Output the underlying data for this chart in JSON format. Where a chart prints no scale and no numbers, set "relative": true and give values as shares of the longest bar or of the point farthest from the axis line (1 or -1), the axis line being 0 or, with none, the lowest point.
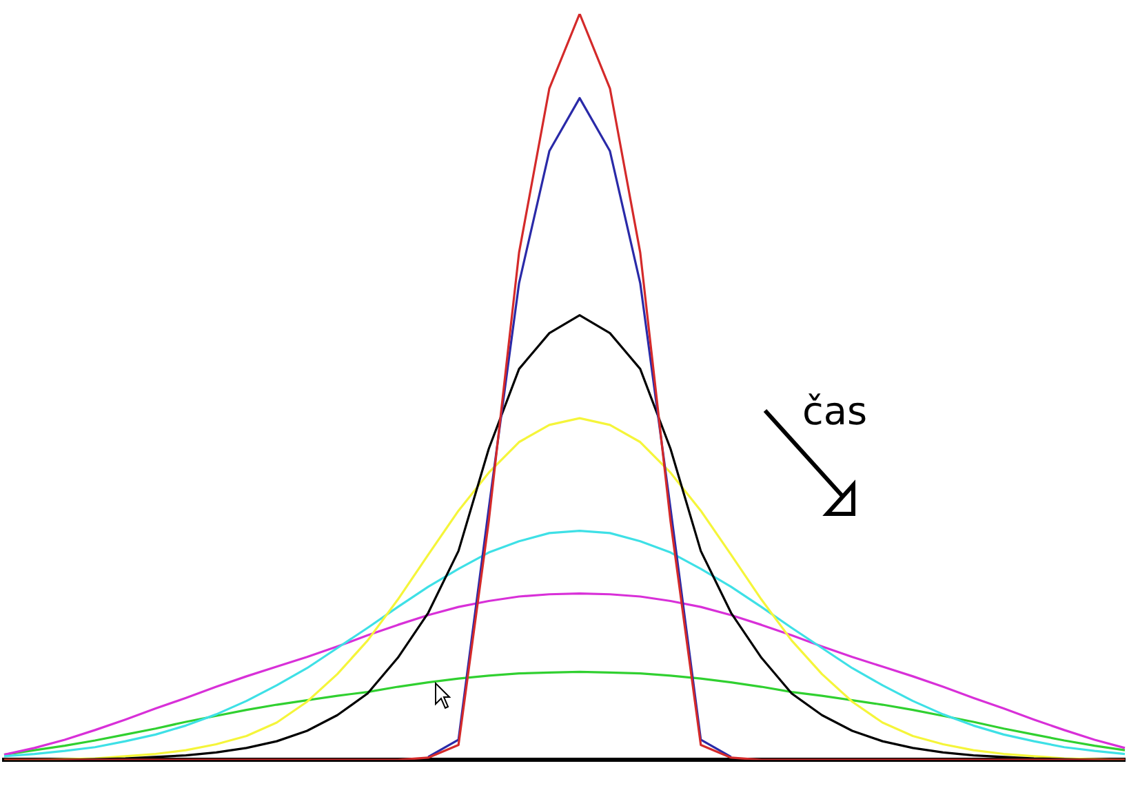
{
  "chart_data": {
    "type": "line",
    "relative": true,
    "marker": "none",
    "categories": [
      null,
      null,
      null,
      null,
      null,
      null,
      null,
      null,
      null,
      null,
      null,
      null,
      null,
      null,
      null,
      null,
      null,
      null,
      null,
      null,
      null,
      null,
      null,
      null,
      null,
      null,
      null,
      null,
      null,
      null,
      null,
      null,
      null,
      null,
      null,
      null,
      null,
      null
    ],
    "annotations": [
      "čas"
    ],
    "series": [
      {
        "color": "#d42a2a",
        "values": [
          0,
          0,
          0,
          0,
          0,
          0,
          0,
          0,
          0,
          0,
          0,
          0,
          0,
          0,
          0.003,
          0.02,
          0.32,
          0.68,
          0.9,
          1,
          0.9,
          0.68,
          0.32,
          0.02,
          0.003,
          0,
          0,
          0,
          0,
          0,
          0,
          0,
          0,
          0,
          0,
          0,
          0,
          0
        ]
      },
      {
        "color": "#2a2aa8",
        "values": [
          null,
          null,
          null,
          null,
          null,
          null,
          null,
          null,
          null,
          null,
          null,
          null,
          null,
          null,
          0.004,
          0.027,
          0.337,
          0.639,
          0.816,
          0.887,
          0.816,
          0.639,
          0.337,
          0.027,
          0.004,
          null,
          null,
          null,
          null,
          null,
          null,
          null,
          null,
          null,
          null,
          null,
          null,
          null
        ]
      },
      {
        "color": "#000000",
        "values": [
          0,
          0,
          0,
          0.001,
          0.002,
          0.004,
          0.006,
          0.01,
          0.016,
          0.025,
          0.039,
          0.06,
          0.089,
          0.137,
          0.197,
          0.28,
          0.417,
          0.524,
          0.572,
          0.596,
          0.572,
          0.524,
          0.417,
          0.28,
          0.197,
          0.137,
          0.089,
          0.06,
          0.039,
          0.025,
          0.016,
          0.01,
          0.006,
          0.004,
          0.002,
          0.001,
          0,
          0
        ]
      },
      {
        "color": "#f5f53a",
        "values": [
          0,
          0,
          0.001,
          0.002,
          0.005,
          0.008,
          0.013,
          0.021,
          0.032,
          0.05,
          0.078,
          0.115,
          0.16,
          0.215,
          0.275,
          0.334,
          0.385,
          0.426,
          0.449,
          0.458,
          0.449,
          0.426,
          0.385,
          0.334,
          0.275,
          0.215,
          0.16,
          0.115,
          0.078,
          0.05,
          0.032,
          0.021,
          0.013,
          0.008,
          0.005,
          0.002,
          0.001,
          0
        ]
      },
      {
        "color": "#3ee0e6",
        "values": [
          0.005,
          0.008,
          0.012,
          0.017,
          0.025,
          0.034,
          0.046,
          0.061,
          0.079,
          0.1,
          0.123,
          0.15,
          0.177,
          0.205,
          0.232,
          0.256,
          0.278,
          0.293,
          0.304,
          0.307,
          0.304,
          0.293,
          0.278,
          0.256,
          0.232,
          0.205,
          0.177,
          0.15,
          0.123,
          0.1,
          0.079,
          0.061,
          0.046,
          0.034,
          0.025,
          0.017,
          0.012,
          0.008
        ]
      },
      {
        "color": "#d830d8",
        "values": [
          0.007,
          0.016,
          0.027,
          0.04,
          0.054,
          0.069,
          0.083,
          0.098,
          0.112,
          0.125,
          0.138,
          0.152,
          0.167,
          0.181,
          0.194,
          0.205,
          0.213,
          0.219,
          0.222,
          0.223,
          0.222,
          0.219,
          0.213,
          0.205,
          0.194,
          0.181,
          0.167,
          0.152,
          0.138,
          0.125,
          0.112,
          0.098,
          0.083,
          0.069,
          0.054,
          0.04,
          0.027,
          0.016
        ]
      },
      {
        "color": "#30d030",
        "values": [
          0.007,
          0.013,
          0.019,
          0.026,
          0.034,
          0.042,
          0.051,
          0.059,
          0.067,
          0.074,
          0.08,
          0.086,
          0.091,
          0.098,
          0.104,
          0.109,
          0.113,
          0.116,
          0.117,
          0.118,
          0.117,
          0.116,
          0.113,
          0.109,
          0.104,
          0.098,
          0.091,
          0.086,
          0.08,
          0.074,
          0.067,
          0.059,
          0.051,
          0.042,
          0.034,
          0.026,
          0.019,
          0.013
        ]
      }
    ]
  }
}
